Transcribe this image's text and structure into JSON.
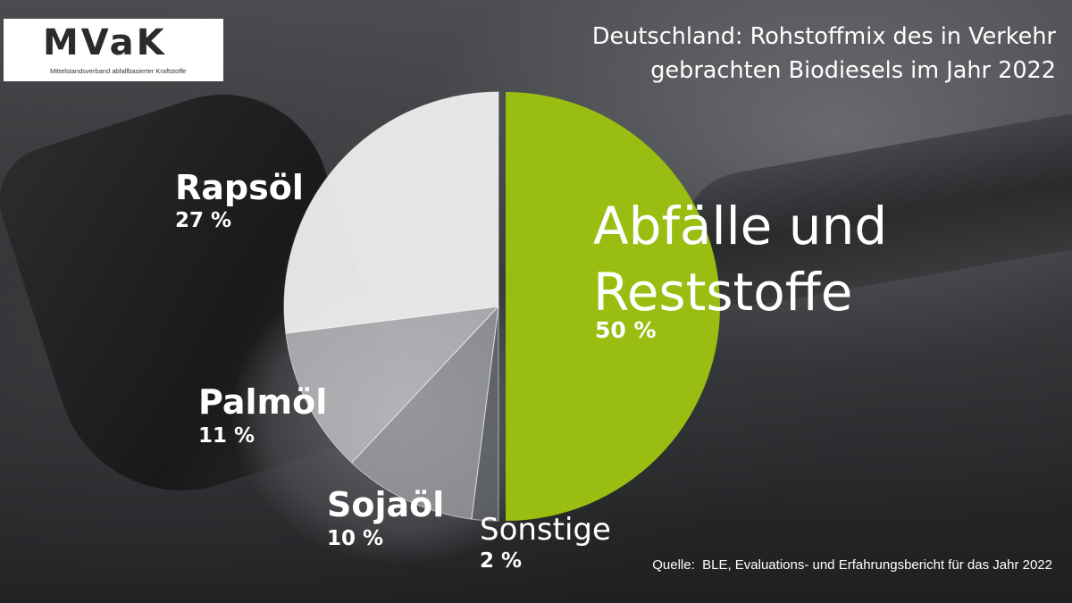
{
  "logo": {
    "text": "MVaK",
    "subtitle": "Mittelstandsverband abfallbasierter Kraftstoffe"
  },
  "title": {
    "line1": "Deutschland: Rohstoffmix des in Verkehr",
    "line2": "gebrachten Biodiesels im Jahr 2022"
  },
  "source": "Quelle:  BLE, Evaluations- und Erfahrungsbericht für das Jahr 2022",
  "chart_data": {
    "type": "pie",
    "title": "Deutschland: Rohstoffmix des in Verkehr gebrachten Biodiesels im Jahr 2022",
    "slices": [
      {
        "label": "Abfälle und Reststoffe",
        "label_line1": "Abfälle und",
        "label_line2": "Reststoffe",
        "value": 50,
        "display": "50 %",
        "color": "#9abd11"
      },
      {
        "label": "Sonstige",
        "value": 2,
        "display": "2 %",
        "color": "#6a6c6f"
      },
      {
        "label": "Sojaöl",
        "value": 10,
        "display": "10 %",
        "color": "#a7a9ac"
      },
      {
        "label": "Palmöl",
        "value": 11,
        "display": "11 %",
        "color": "#cfd0d2"
      },
      {
        "label": "Rapsöl",
        "value": 27,
        "display": "27 %",
        "color": "#eeeeef"
      }
    ],
    "start_angle": "12 o'clock, clockwise",
    "legend": "none (direct labels)"
  }
}
